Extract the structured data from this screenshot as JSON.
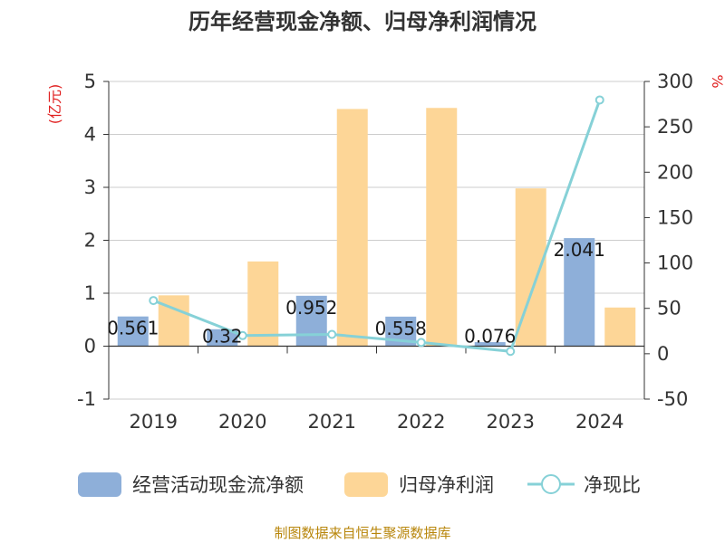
{
  "title": "历年经营现金净额、归母净利润情况",
  "source": "制图数据来自恒生聚源数据库",
  "chart_data": {
    "type": "bar",
    "title": "历年经营现金净额、归母净利润情况",
    "categories": [
      "2019",
      "2020",
      "2021",
      "2022",
      "2023",
      "2024"
    ],
    "left_axis": {
      "unit_label": "(亿元)",
      "ylim": [
        -1,
        5
      ],
      "ticks": [
        "-1",
        "0",
        "1",
        "2",
        "3",
        "4",
        "5"
      ]
    },
    "right_axis": {
      "unit_label": "%",
      "ylim": [
        -50,
        300
      ],
      "ticks": [
        "-50",
        "0",
        "50",
        "100",
        "150",
        "200",
        "250",
        "300"
      ]
    },
    "series": [
      {
        "name": "经营活动现金流净额",
        "type": "bar",
        "axis": "left",
        "color": "#8eafd9",
        "values": [
          0.561,
          0.32,
          0.952,
          0.558,
          0.076,
          2.041
        ],
        "labels": [
          "0.561",
          "0.32",
          "0.952",
          "0.558",
          "0.076",
          "2.041"
        ]
      },
      {
        "name": "归母净利润",
        "type": "bar",
        "axis": "left",
        "color": "#fdd697",
        "values": [
          0.96,
          1.6,
          4.48,
          4.5,
          2.98,
          0.73
        ]
      },
      {
        "name": "净现比",
        "type": "line",
        "axis": "right",
        "color": "#86d1d7",
        "values": [
          58.6,
          20.0,
          21.3,
          12.4,
          2.6,
          279.6
        ]
      }
    ],
    "grid": true,
    "legend_position": "bottom"
  }
}
